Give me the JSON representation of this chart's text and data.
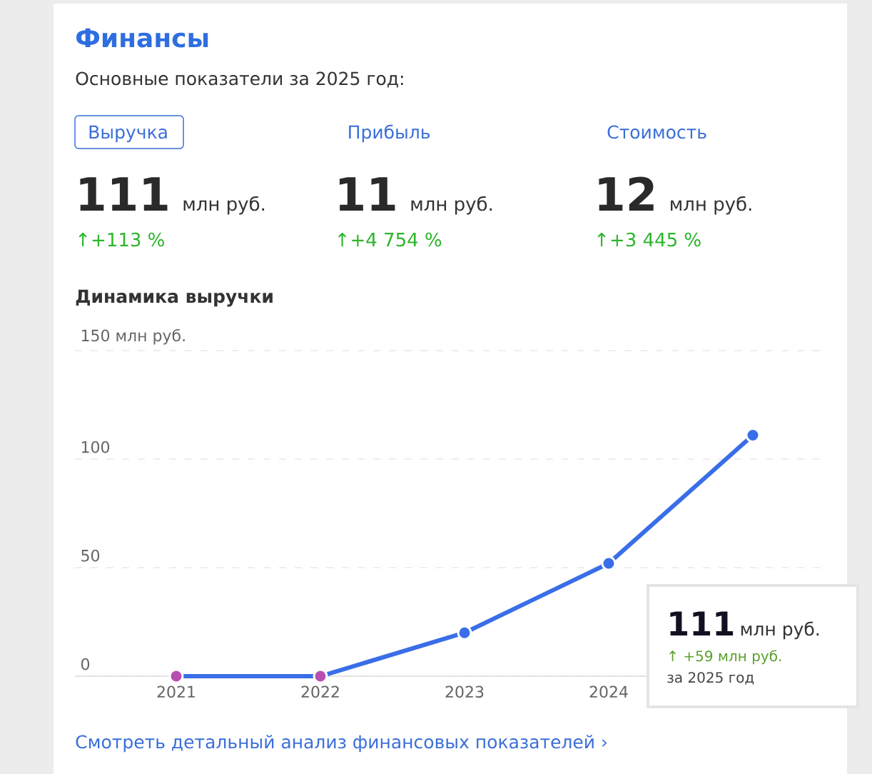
{
  "chart_data": [
    {
      "type": "other",
      "title": "Финансы",
      "subtitle": "Основные показатели за 2025 год:",
      "annotations": [
        "Выручка",
        "111",
        "млн руб.",
        "↑+113 %",
        "Прибыль",
        "11",
        "млн руб.",
        "↑+4 754 %",
        "Стоимость",
        "12",
        "млн руб.",
        "↑+3 445 %"
      ]
    },
    {
      "type": "line",
      "title": "Динамика выручки",
      "categories": [
        "2021",
        "2022",
        "2023",
        "2024",
        null
      ],
      "series": [
        {
          "color": "#3a6ee8",
          "colors": [
            "#b84fb0",
            "#b84fb0",
            "#3a6ee8",
            "#3a6ee8",
            "#3a6ee8"
          ],
          "values": [
            0,
            0,
            20,
            52,
            111
          ]
        }
      ],
      "ylim": [
        0,
        150
      ],
      "yticks": [
        0,
        50,
        100,
        {
          "value": 150,
          "label": "150 млн руб."
        }
      ],
      "grid": "y",
      "marker": "circle",
      "line_style": "solid",
      "annotations": [
        "111",
        "млн руб.",
        "↑ +59 млн руб.",
        "за 2025 год",
        "Смотреть детальный анализ финансовых показателей ›"
      ]
    }
  ]
}
